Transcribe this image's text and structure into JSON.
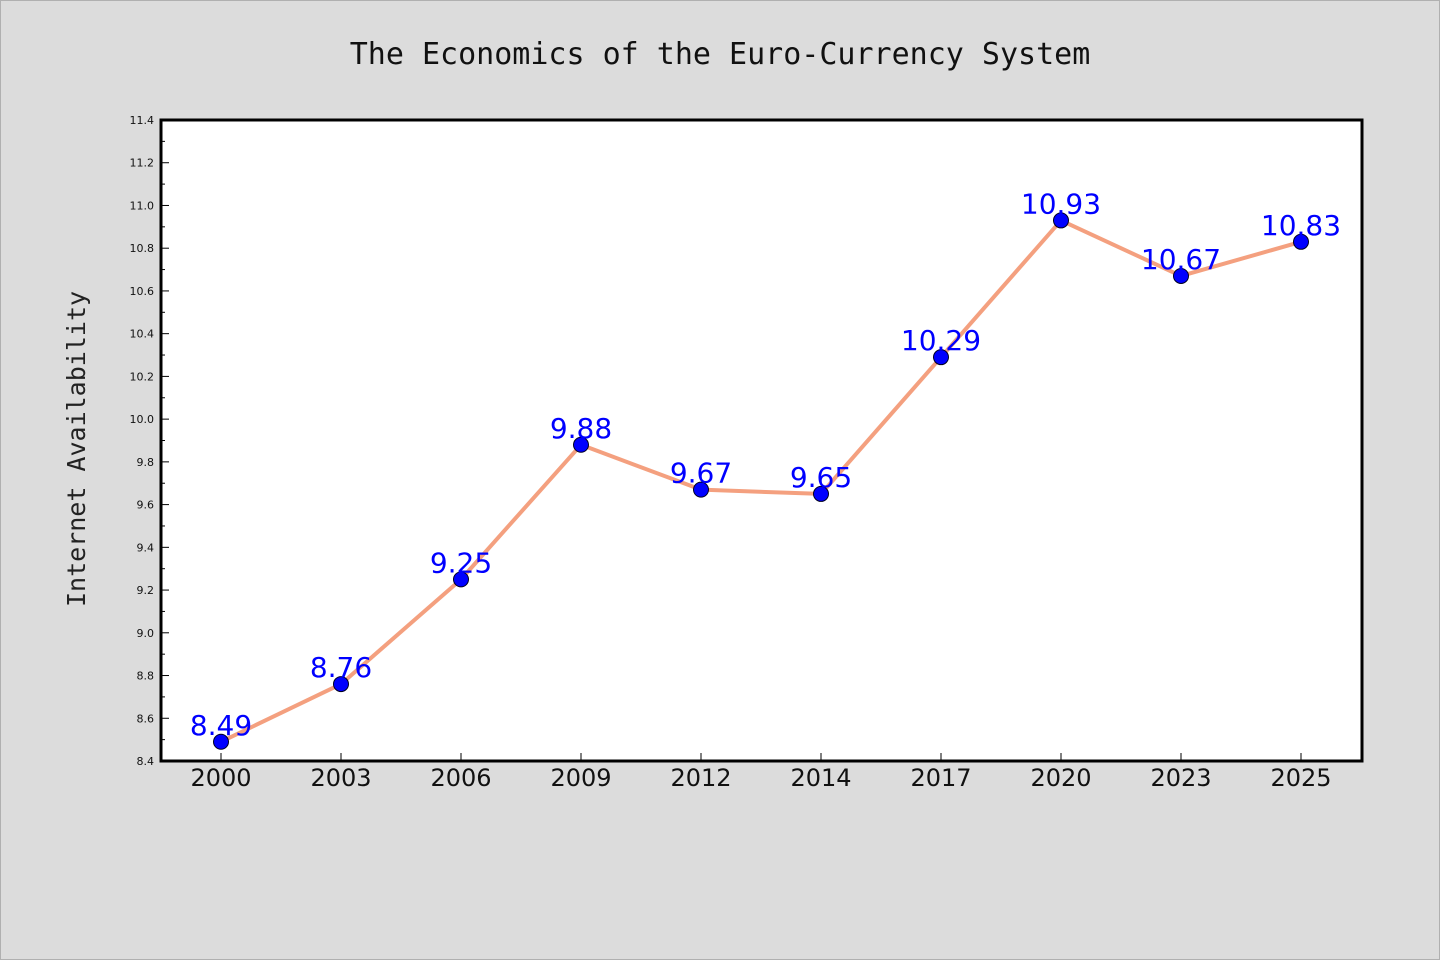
{
  "chart_data": {
    "type": "line",
    "title": "The Economics of the Euro-Currency System",
    "xlabel": "",
    "ylabel": "Internet Availability",
    "categories": [
      "2000",
      "2003",
      "2006",
      "2009",
      "2012",
      "2014",
      "2017",
      "2020",
      "2023",
      "2025"
    ],
    "series": [
      {
        "values": [
          8.49,
          8.76,
          9.25,
          9.88,
          9.67,
          9.65,
          10.29,
          10.93,
          10.67,
          10.83
        ],
        "data_labels": [
          "8.49",
          "8.76",
          "9.25",
          "9.88",
          "9.67",
          "9.65",
          "10.29",
          "10.93",
          "10.67",
          "10.83"
        ]
      }
    ],
    "ylim": [
      8.4,
      11.4
    ],
    "yticks": [
      "8.4",
      "8.6",
      "8.8",
      "9.0",
      "9.2",
      "9.4",
      "9.6",
      "9.8",
      "10.0",
      "10.2",
      "10.4",
      "10.6",
      "10.8",
      "11.0",
      "11.2",
      "11.4"
    ],
    "grid": false,
    "legend": "none",
    "colors": {
      "background": "#dcdcdc",
      "plot_area": "#ffffff",
      "line": "#f4a07f",
      "marker": "#0000ff",
      "data_label": "#0000ff"
    }
  }
}
